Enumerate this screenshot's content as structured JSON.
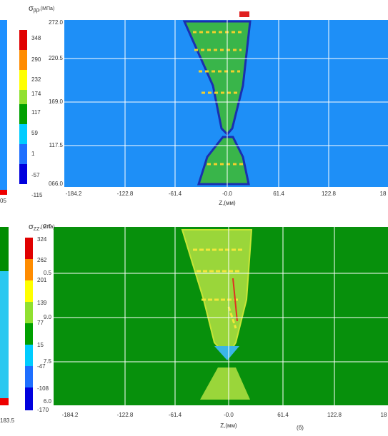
{
  "panels": [
    {
      "symbol": "σ",
      "subscript": "ββ",
      "unit": ",(МПа)",
      "colorbar": [
        "348",
        "290",
        "232",
        "174",
        "117",
        "59",
        "1",
        "-57",
        "-115"
      ],
      "yticks": [
        "272.0",
        "220.5",
        "169.0",
        "117.5",
        "066.0"
      ],
      "xticks": [
        "-184.2",
        "-122.8",
        "-61.4",
        "-0.0",
        "61.4",
        "122.8",
        "18"
      ],
      "xlabel": "Z,(мм)"
    },
    {
      "symbol": "σ",
      "subscript": "ZZ",
      "unit": ",(МПа)",
      "colorbar": [
        "324",
        "262",
        "201",
        "139",
        "77",
        "15",
        "-47",
        "-108",
        "-170"
      ],
      "yticks": [
        "2.0",
        "0.5",
        "9.0",
        "7.5",
        "6.0"
      ],
      "xticks": [
        "-184.2",
        "-122.8",
        "-61.4",
        "-0.0",
        "61.4",
        "122.8",
        "18"
      ],
      "xlabel": "Z,(мм)"
    }
  ],
  "fragments": {
    "top_left": "05",
    "bottom_left": "183.5"
  },
  "caption": "(б)"
}
